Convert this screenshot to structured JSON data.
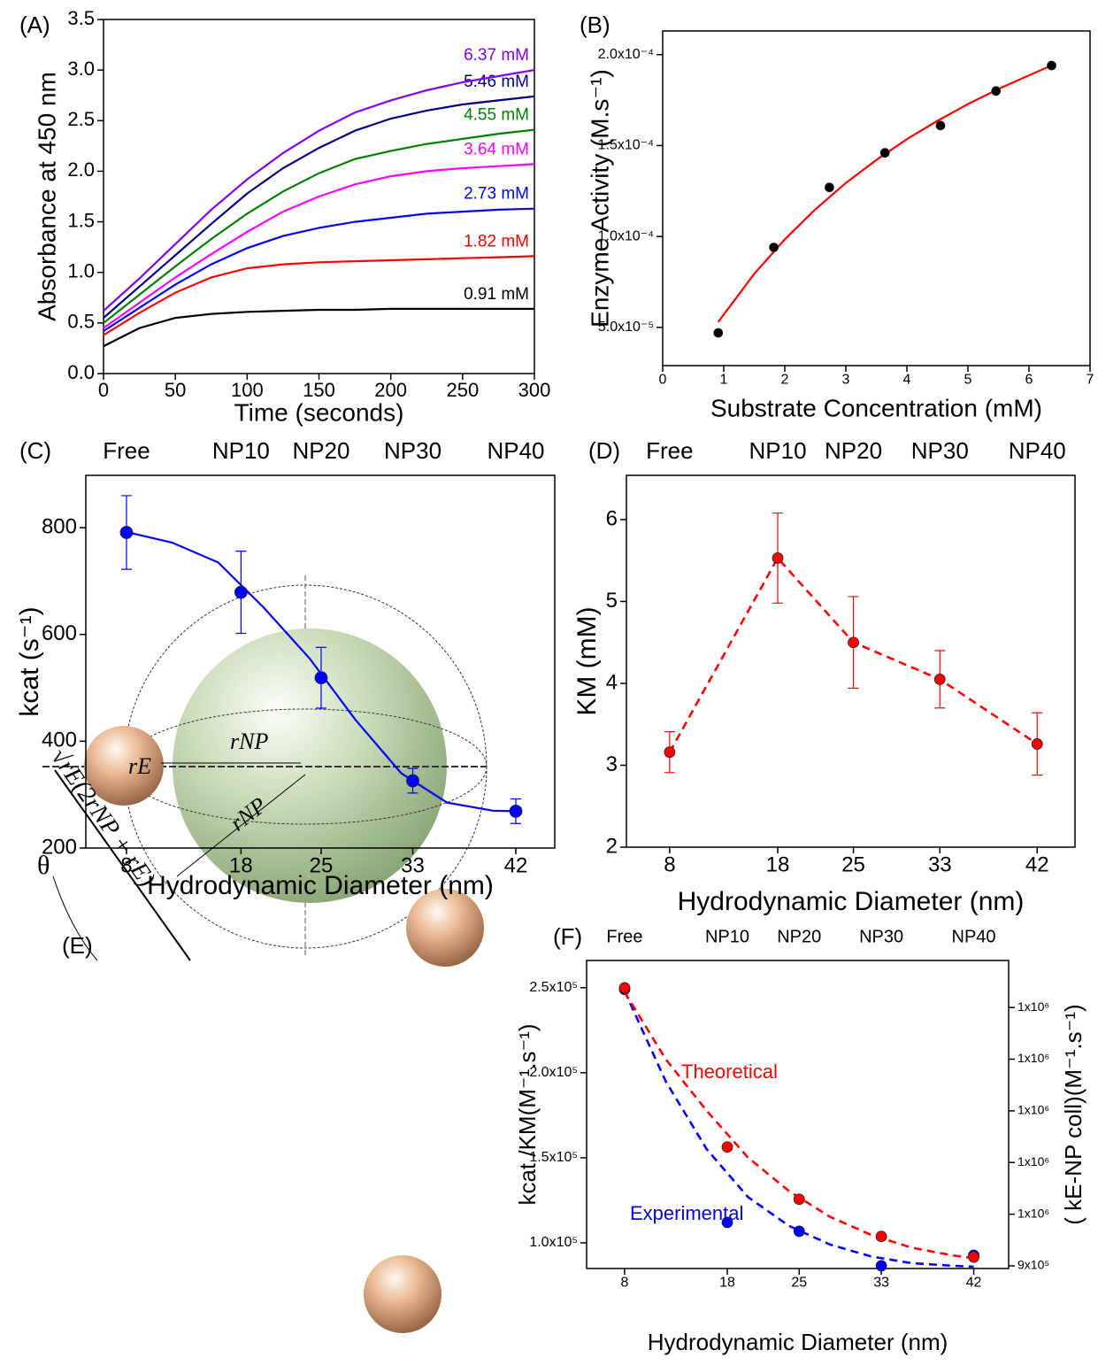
{
  "chart_data": [
    {
      "type": "line",
      "title": "(A)",
      "x": [
        0,
        25,
        50,
        75,
        100,
        125,
        150,
        175,
        200,
        225,
        250,
        275,
        300
      ],
      "series": [
        {
          "name": "0.91 mM",
          "color": "#000000",
          "values": [
            0.27,
            0.45,
            0.55,
            0.59,
            0.61,
            0.62,
            0.63,
            0.63,
            0.64,
            0.64,
            0.64,
            0.64,
            0.64
          ]
        },
        {
          "name": "1.82 mM",
          "color": "#ff0000",
          "values": [
            0.38,
            0.6,
            0.8,
            0.95,
            1.04,
            1.08,
            1.1,
            1.11,
            1.12,
            1.13,
            1.14,
            1.15,
            1.16
          ]
        },
        {
          "name": "2.73 mM",
          "color": "#0000ff",
          "values": [
            0.42,
            0.65,
            0.88,
            1.08,
            1.24,
            1.36,
            1.44,
            1.5,
            1.54,
            1.58,
            1.6,
            1.62,
            1.63
          ]
        },
        {
          "name": "3.64 mM",
          "color": "#ff00ff",
          "values": [
            0.45,
            0.7,
            0.95,
            1.18,
            1.4,
            1.6,
            1.75,
            1.87,
            1.95,
            2.0,
            2.03,
            2.05,
            2.07
          ]
        },
        {
          "name": "4.55 mM",
          "color": "#008000",
          "values": [
            0.5,
            0.78,
            1.06,
            1.33,
            1.58,
            1.8,
            1.98,
            2.12,
            2.2,
            2.27,
            2.32,
            2.37,
            2.41
          ]
        },
        {
          "name": "5.46 mM",
          "color": "#000080",
          "values": [
            0.55,
            0.86,
            1.17,
            1.48,
            1.78,
            2.03,
            2.23,
            2.4,
            2.52,
            2.6,
            2.66,
            2.7,
            2.74
          ]
        },
        {
          "name": "6.37 mM",
          "color": "#8000ff",
          "values": [
            0.62,
            0.94,
            1.28,
            1.62,
            1.92,
            2.18,
            2.4,
            2.58,
            2.7,
            2.8,
            2.88,
            2.94,
            3.0
          ]
        }
      ],
      "xlim": [
        0,
        300
      ],
      "ylim": [
        0,
        3.5
      ],
      "xticks": [
        0,
        50,
        100,
        150,
        200,
        250,
        300
      ],
      "yticks": [
        {
          "value": 0,
          "label": "0.0"
        },
        0.5,
        {
          "value": 1,
          "label": "1.0"
        },
        1.5,
        {
          "value": 2,
          "label": "2.0"
        },
        2.5,
        {
          "value": 3,
          "label": "3.0"
        },
        3.5
      ],
      "x_label": "Time (seconds)",
      "y_label": "Absorbance at 450 nm"
    },
    {
      "type": "scatter",
      "title": "(B)",
      "series": [
        {
          "style": "line",
          "color": "#ff0000",
          "x": [
            0.91,
            1.5,
            2,
            2.5,
            3,
            3.5,
            4,
            4.5,
            5,
            5.5,
            6,
            6.37
          ],
          "values": [
            5.3e-05,
            7.95e-05,
            9.84e-05,
            0.0001149,
            0.0001294,
            0.0001421,
            0.0001535,
            0.0001636,
            0.0001728,
            0.0001811,
            0.0001886,
            0.000194
          ]
        },
        {
          "style": "points",
          "color": "#000000",
          "x": [
            0.91,
            1.82,
            2.73,
            3.64,
            4.55,
            5.46,
            6.37
          ],
          "values": [
            4.7e-05,
            9.4e-05,
            0.000127,
            0.000146,
            0.000161,
            0.00018,
            0.000194
          ]
        }
      ],
      "xlim": [
        0,
        7
      ],
      "ylim": [
        2.9e-05,
        0.000213
      ],
      "xticks": [
        0,
        1,
        2,
        3,
        4,
        5,
        6,
        7
      ],
      "yticks": [
        {
          "value": 5e-05,
          "label": "5.0x10⁻⁵"
        },
        {
          "value": 0.0001,
          "label": "1.0x10⁻⁴"
        },
        {
          "value": 0.00015,
          "label": "1.5x10⁻⁴"
        },
        {
          "value": 0.0002,
          "label": "2.0x10⁻⁴"
        }
      ],
      "x_label": "Substrate Concentration (mM)",
      "y_label": "Enzyme Activity (M.s⁻¹)"
    },
    {
      "type": "scatter",
      "title": "(C)",
      "top_labels": [
        "Free",
        "NP10",
        "NP20",
        "NP30",
        "NP40"
      ],
      "series": [
        {
          "style": "line",
          "color": "#0000ff",
          "x": [
            8,
            12,
            16,
            20,
            24,
            28,
            32,
            36,
            40,
            42
          ],
          "values": [
            792,
            772,
            735,
            650,
            555,
            440,
            340,
            285,
            270,
            269
          ]
        },
        {
          "style": "points",
          "color": "#0000ff",
          "x": [
            8,
            18,
            25,
            33,
            42
          ],
          "values": [
            791,
            679,
            519,
            326,
            269
          ],
          "errors": [
            69,
            77,
            57,
            23,
            23
          ]
        }
      ],
      "xlim": [
        4.45,
        45.4
      ],
      "ylim": [
        200,
        898
      ],
      "xticks": [
        8,
        18,
        25,
        33,
        42
      ],
      "yticks": [
        200,
        400,
        600,
        800
      ],
      "x_label": "Hydrodynamic Diameter (nm)",
      "y_label": "kcat (s⁻¹)"
    },
    {
      "type": "scatter",
      "title": "(D)",
      "top_labels": [
        "Free",
        "NP10",
        "NP20",
        "NP30",
        "NP40"
      ],
      "series": [
        {
          "style": "dashed_points",
          "color": "#ff0000",
          "x": [
            8,
            18,
            25,
            33,
            42
          ],
          "values": [
            3.16,
            5.53,
            4.5,
            4.05,
            3.26
          ],
          "errors": [
            0.25,
            0.55,
            0.56,
            0.35,
            0.38
          ]
        }
      ],
      "xlim": [
        4,
        45.5
      ],
      "ylim": [
        2,
        6.54
      ],
      "xticks": [
        8,
        18,
        25,
        33,
        42
      ],
      "yticks": [
        2,
        3,
        4,
        5,
        6
      ],
      "x_label": "Hydrodynamic Diameter (nm)",
      "y_label": "KM (mM)"
    },
    {
      "type": "diagram",
      "title": "(E)",
      "labels": [
        "θ",
        "rE",
        "rNP",
        "rNP",
        "√rE(2rNP + rE)"
      ]
    },
    {
      "type": "scatter",
      "title": "(F)",
      "top_labels": [
        "Free",
        "NP10",
        "NP20",
        "NP30",
        "NP40"
      ],
      "series": [
        {
          "name": "Experimental",
          "style": "dashed",
          "color": "#0000ff",
          "x": [
            8,
            12,
            16,
            20,
            24,
            28,
            32,
            36,
            40,
            42
          ],
          "values": [
            248000,
            195000,
            155000,
            127000,
            110000,
            99000,
            92000,
            88000,
            86500,
            86000
          ]
        },
        {
          "style": "points",
          "color": "#0000ff",
          "x": [
            8,
            18,
            25,
            33,
            42
          ],
          "values": [
            249000,
            112000,
            106800,
            86500,
            92700
          ]
        },
        {
          "name": "Theoretical",
          "style": "dashed",
          "color": "#ff0000",
          "axis": "y2",
          "x": [
            8,
            12,
            16,
            20,
            24,
            28,
            32,
            36,
            40,
            42
          ],
          "values": [
            1430000,
            1300000,
            1200000,
            1110000,
            1045000,
            995000,
            960000,
            935000,
            920000,
            915000
          ]
        },
        {
          "style": "points",
          "color": "#ff0000",
          "axis": "y2",
          "x": [
            8,
            18,
            25,
            33,
            42
          ],
          "values": [
            1438000,
            1130000,
            1029000,
            957000,
            917000
          ]
        }
      ],
      "xlim": [
        4.3,
        45.4
      ],
      "ylim": [
        84900,
        266000
      ],
      "y2lim": [
        894900,
        1491000
      ],
      "xticks": [
        8,
        18,
        25,
        33,
        42
      ],
      "yticks": [
        {
          "value": 100000,
          "label": "1.0x10⁵"
        },
        {
          "value": 150000,
          "label": "1.5x10⁵"
        },
        {
          "value": 200000,
          "label": "2.0x10⁵"
        },
        {
          "value": 250000,
          "label": "2.5x10⁵"
        }
      ],
      "y2ticks": [
        {
          "value": 900000,
          "label": "9x10⁵"
        },
        {
          "value": 1000000,
          "label": "1x10⁶"
        },
        {
          "value": 1100000,
          "label": "1x10⁶"
        },
        {
          "value": 1200000,
          "label": "1x10⁶"
        },
        {
          "value": 1300000,
          "label": "1x10⁶"
        },
        {
          "value": 1400000,
          "label": "1x10⁶"
        }
      ],
      "x_label": "Hydrodynamic Diameter (nm)",
      "y_label": "kcat /KM(M⁻¹.s⁻¹)",
      "y2_label": "( kE-NP coll)(M⁻¹.s⁻¹)"
    }
  ]
}
